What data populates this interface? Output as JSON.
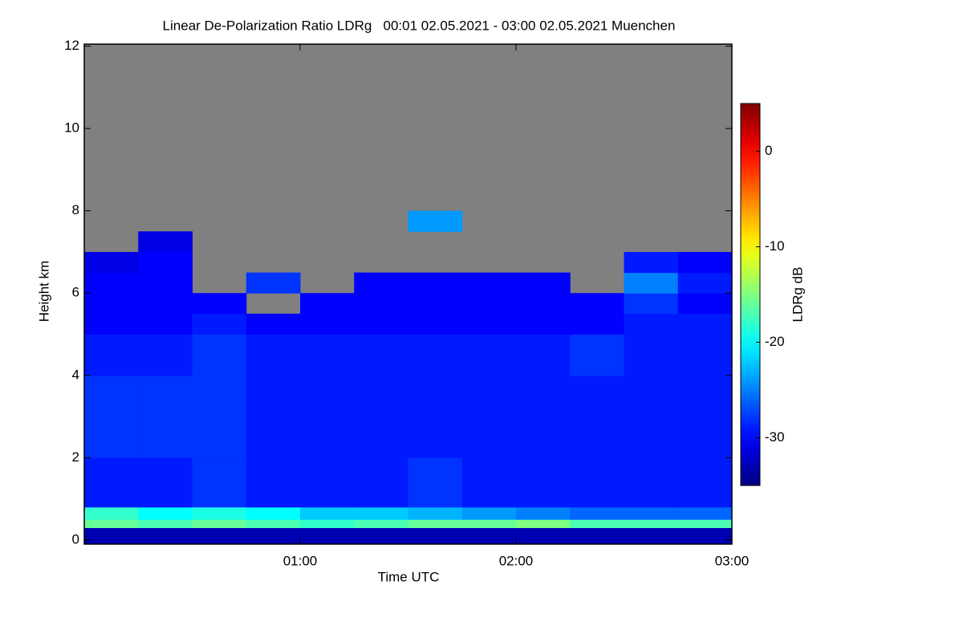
{
  "chart_data": {
    "type": "heatmap",
    "title": "Linear De-Polarization Ratio LDRg   00:01 02.05.2021 - 03:00 02.05.2021 Muenchen",
    "xlabel": "Time UTC",
    "ylabel": "Height km",
    "colorbar_label": "LDRg dB",
    "colormap": "jet",
    "missing_color": "#808080",
    "xlim": [
      0,
      180
    ],
    "ylim": [
      -0.1,
      12.05
    ],
    "clim": [
      -35,
      5
    ],
    "xticks": [
      {
        "value": 60,
        "label": "01:00"
      },
      {
        "value": 120,
        "label": "02:00"
      },
      {
        "value": 180,
        "label": "03:00"
      }
    ],
    "yticks": [
      0,
      2,
      4,
      6,
      8,
      10,
      12
    ],
    "cticks": [
      0,
      -10,
      -20,
      -30
    ],
    "xbins": [
      0,
      15,
      30,
      45,
      60,
      75,
      90,
      105,
      120,
      135,
      150,
      165,
      180
    ],
    "ybins": [
      -0.1,
      0.3,
      0.5,
      0.8,
      2,
      4,
      5,
      5.5,
      6,
      6.5,
      7,
      7.5,
      8,
      12.05
    ],
    "z": [
      [
        -33,
        -33,
        -33,
        -33,
        -33,
        -33,
        -33,
        -33,
        -33,
        -33,
        -33,
        -33
      ],
      [
        -16,
        -17,
        -16,
        -17,
        -18,
        -17,
        -16,
        -16,
        -15,
        -17,
        -17,
        -17
      ],
      [
        -18,
        -20,
        -19,
        -20,
        -22,
        -22,
        -23,
        -24,
        -25,
        -26,
        -26,
        -26
      ],
      [
        -29,
        -29,
        -28,
        -29,
        -29,
        -29,
        -28,
        -29,
        -29,
        -29,
        -29,
        -29
      ],
      [
        -28,
        -28,
        -28,
        -29,
        -29,
        -29,
        -29,
        -29,
        -29,
        -29,
        -29,
        -29
      ],
      [
        -29,
        -29,
        -28,
        -29,
        -29,
        -29,
        -29,
        -29,
        -29,
        -28,
        -29,
        -29
      ],
      [
        -30,
        -30,
        -29,
        -30,
        -30,
        -30,
        -30,
        -30,
        -30,
        -30,
        -29,
        -29
      ],
      [
        -30,
        -30,
        -30,
        null,
        -30,
        -30,
        -30,
        -30,
        -30,
        -30,
        -28,
        -30
      ],
      [
        -30,
        -30,
        null,
        -28,
        null,
        -30,
        -30,
        -30,
        -30,
        null,
        -25,
        -29
      ],
      [
        -31,
        -30,
        null,
        null,
        null,
        null,
        null,
        null,
        null,
        null,
        -29,
        -30
      ],
      [
        null,
        -31,
        null,
        null,
        null,
        null,
        null,
        null,
        null,
        null,
        null,
        null
      ],
      [
        null,
        null,
        null,
        null,
        null,
        null,
        -24,
        null,
        null,
        null,
        null,
        null
      ],
      [
        null,
        null,
        null,
        null,
        null,
        null,
        null,
        null,
        null,
        null,
        null,
        null
      ]
    ]
  }
}
